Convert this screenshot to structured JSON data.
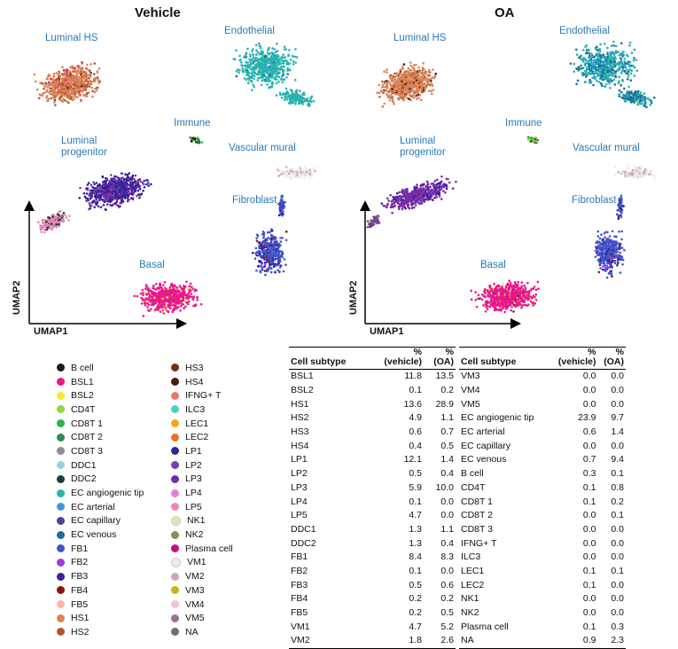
{
  "titles": {
    "vehicle": "Vehicle",
    "oa": "OA"
  },
  "axes": {
    "x": "UMAP1",
    "y": "UMAP2"
  },
  "clusters": {
    "luminal_hs": "Luminal HS",
    "endothelial": "Endothelial",
    "immune": "Immune",
    "vascular_mural": "Vascular mural",
    "luminal_progenitor_1": "Luminal",
    "luminal_progenitor_2": "progenitor",
    "fibroblast": "Fibroblast",
    "basal": "Basal"
  },
  "legend": [
    {
      "label": "B cell",
      "color": "#1a1a1a"
    },
    {
      "label": "BSL1",
      "color": "#e8198a"
    },
    {
      "label": "BSL2",
      "color": "#f4ea2a"
    },
    {
      "label": "CD4T",
      "color": "#8ed843"
    },
    {
      "label": "CD8T 1",
      "color": "#2fb34a"
    },
    {
      "label": "CD8T 2",
      "color": "#2e8a5a"
    },
    {
      "label": "CD8T 3",
      "color": "#8a8f95"
    },
    {
      "label": "DDC1",
      "color": "#8fd3e6"
    },
    {
      "label": "DDC2",
      "color": "#1f3d3b"
    },
    {
      "label": "EC angiogenic tip",
      "color": "#26b5aa"
    },
    {
      "label": "EC arterial",
      "color": "#3b9bd9"
    },
    {
      "label": "EC capillary",
      "color": "#4f3f8f"
    },
    {
      "label": "EC venous",
      "color": "#1b6e9e"
    },
    {
      "label": "FB1",
      "color": "#3f57c7"
    },
    {
      "label": "FB2",
      "color": "#a33ce0"
    },
    {
      "label": "FB3",
      "color": "#3a1fa0"
    },
    {
      "label": "FB4",
      "color": "#8b1313"
    },
    {
      "label": "FB5",
      "color": "#f5b89c"
    },
    {
      "label": "HS1",
      "color": "#d9845a"
    },
    {
      "label": "HS2",
      "color": "#b5532d"
    },
    {
      "label": "HS3",
      "color": "#7a2d12"
    },
    {
      "label": "HS4",
      "color": "#4a1b0e"
    },
    {
      "label": "IFNG+ T",
      "color": "#f0756d"
    },
    {
      "label": "ILC3",
      "color": "#4ad0c4"
    },
    {
      "label": "LEC1",
      "color": "#f5a623"
    },
    {
      "label": "LEC2",
      "color": "#e5772a"
    },
    {
      "label": "LP1",
      "color": "#2f2496"
    },
    {
      "label": "LP2",
      "color": "#7a3fae"
    },
    {
      "label": "LP3",
      "color": "#7b2aa8"
    },
    {
      "label": "LP4",
      "color": "#e37fd6"
    },
    {
      "label": "LP5",
      "color": "#e88ab0"
    },
    {
      "label": "NK1",
      "color": "#d8eab6"
    },
    {
      "label": "NK2",
      "color": "#8d8a5c"
    },
    {
      "label": "Plasma cell",
      "color": "#c01380"
    },
    {
      "label": "VM1",
      "color": "#ececec"
    },
    {
      "label": "VM2",
      "color": "#c9a9b5"
    },
    {
      "label": "VM3",
      "color": "#c8b416"
    },
    {
      "label": "VM4",
      "color": "#f3c3cf"
    },
    {
      "label": "VM5",
      "color": "#9a6f98"
    },
    {
      "label": "NA",
      "color": "#6e6e6e"
    }
  ],
  "table_headers": {
    "subtype": "Cell subtype",
    "pct1": "%",
    "vehicle": "(vehicle)",
    "pct2": "%",
    "oa": "(OA)"
  },
  "table_left": [
    {
      "subtype": "BSL1",
      "vehicle": "11.8",
      "oa": "13.5"
    },
    {
      "subtype": "BSL2",
      "vehicle": "0.1",
      "oa": "0.2"
    },
    {
      "subtype": "HS1",
      "vehicle": "13.6",
      "oa": "28.9"
    },
    {
      "subtype": "HS2",
      "vehicle": "4.9",
      "oa": "1.1"
    },
    {
      "subtype": "HS3",
      "vehicle": "0.6",
      "oa": "0.7"
    },
    {
      "subtype": "HS4",
      "vehicle": "0.4",
      "oa": "0.5"
    },
    {
      "subtype": "LP1",
      "vehicle": "12.1",
      "oa": "1.4"
    },
    {
      "subtype": "LP2",
      "vehicle": "0.5",
      "oa": "0.4"
    },
    {
      "subtype": "LP3",
      "vehicle": "5.9",
      "oa": "10.0"
    },
    {
      "subtype": "LP4",
      "vehicle": "0.1",
      "oa": "0.0"
    },
    {
      "subtype": "LP5",
      "vehicle": "4.7",
      "oa": "0.0"
    },
    {
      "subtype": "DDC1",
      "vehicle": "1.3",
      "oa": "1.1"
    },
    {
      "subtype": "DDC2",
      "vehicle": "1.3",
      "oa": "0.4"
    },
    {
      "subtype": "FB1",
      "vehicle": "8.4",
      "oa": "8.3"
    },
    {
      "subtype": "FB2",
      "vehicle": "0.1",
      "oa": "0.0"
    },
    {
      "subtype": "FB3",
      "vehicle": "0.5",
      "oa": "0.6"
    },
    {
      "subtype": "FB4",
      "vehicle": "0.2",
      "oa": "0.2"
    },
    {
      "subtype": "FB5",
      "vehicle": "0.2",
      "oa": "0.5"
    },
    {
      "subtype": "VM1",
      "vehicle": "4.7",
      "oa": "5.2"
    },
    {
      "subtype": "VM2",
      "vehicle": "1.8",
      "oa": "2.6"
    }
  ],
  "table_right": [
    {
      "subtype": "VM3",
      "vehicle": "0.0",
      "oa": "0.0"
    },
    {
      "subtype": "VM4",
      "vehicle": "0.0",
      "oa": "0.0"
    },
    {
      "subtype": "VM5",
      "vehicle": "0.0",
      "oa": "0.0"
    },
    {
      "subtype": "EC angiogenic tip",
      "vehicle": "23.9",
      "oa": "9.7"
    },
    {
      "subtype": "EC arterial",
      "vehicle": "0.6",
      "oa": "1.4"
    },
    {
      "subtype": "EC capillary",
      "vehicle": "0.0",
      "oa": "0.0"
    },
    {
      "subtype": "EC venous",
      "vehicle": "0.7",
      "oa": "9.4"
    },
    {
      "subtype": "B cell",
      "vehicle": "0.3",
      "oa": "0.1"
    },
    {
      "subtype": "CD4T",
      "vehicle": "0.1",
      "oa": "0.8"
    },
    {
      "subtype": "CD8T 1",
      "vehicle": "0.1",
      "oa": "0.2"
    },
    {
      "subtype": "CD8T 2",
      "vehicle": "0.0",
      "oa": "0.1"
    },
    {
      "subtype": "CD8T 3",
      "vehicle": "0.0",
      "oa": "0.0"
    },
    {
      "subtype": "IFNG+ T",
      "vehicle": "0.0",
      "oa": "0.0"
    },
    {
      "subtype": "ILC3",
      "vehicle": "0.0",
      "oa": "0.0"
    },
    {
      "subtype": "LEC1",
      "vehicle": "0.1",
      "oa": "0.1"
    },
    {
      "subtype": "LEC2",
      "vehicle": "0.1",
      "oa": "0.0"
    },
    {
      "subtype": "NK1",
      "vehicle": "0.0",
      "oa": "0.0"
    },
    {
      "subtype": "NK2",
      "vehicle": "0.0",
      "oa": "0.0"
    },
    {
      "subtype": "Plasma cell",
      "vehicle": "0.1",
      "oa": "0.3"
    },
    {
      "subtype": "NA",
      "vehicle": "0.9",
      "oa": "2.3"
    }
  ]
}
